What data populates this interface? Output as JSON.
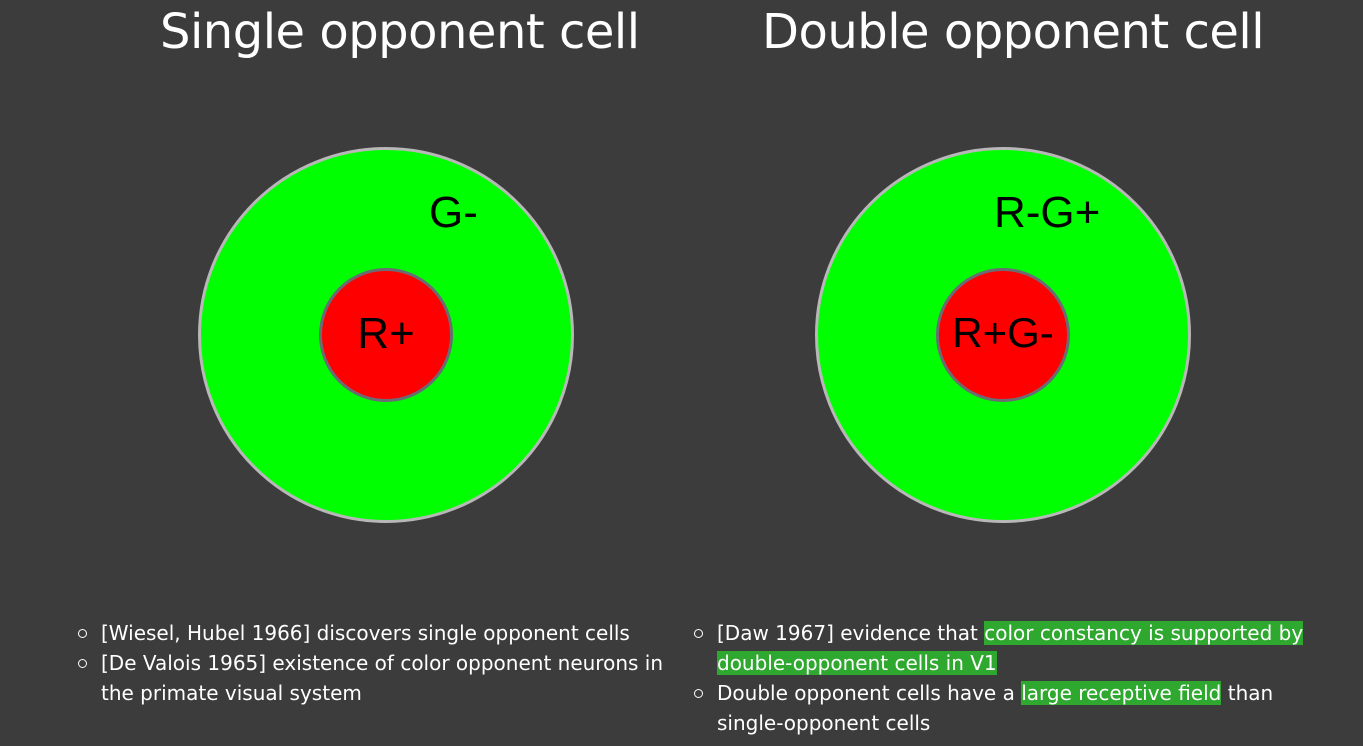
{
  "titles": {
    "left": "Single opponent cell",
    "right": "Double opponent cell"
  },
  "single_cell": {
    "surround_label": "G-",
    "center_label": "R+",
    "surround_color": "#00ff00",
    "center_color": "#ff0000"
  },
  "double_cell": {
    "surround_label": "R-G+",
    "center_label": "R+G-",
    "surround_color": "#00ff00",
    "center_color": "#ff0000"
  },
  "notes_left": {
    "item1": "[Wiesel, Hubel 1966] discovers single opponent cells",
    "item2": "[De Valois 1965] existence of color opponent neurons in the primate visual system"
  },
  "notes_right": {
    "item1_prefix": "[Daw 1967] evidence that ",
    "item1_highlight_a": "color constancy is supported by",
    "item1_highlight_b": "double-opponent cells in V1",
    "item2_prefix": "Double opponent cells have a ",
    "item2_highlight": "large receptive field",
    "item2_suffix": " than single-opponent cells"
  },
  "highlight_color": "#2ea82e",
  "background_color": "#3c3c3c"
}
